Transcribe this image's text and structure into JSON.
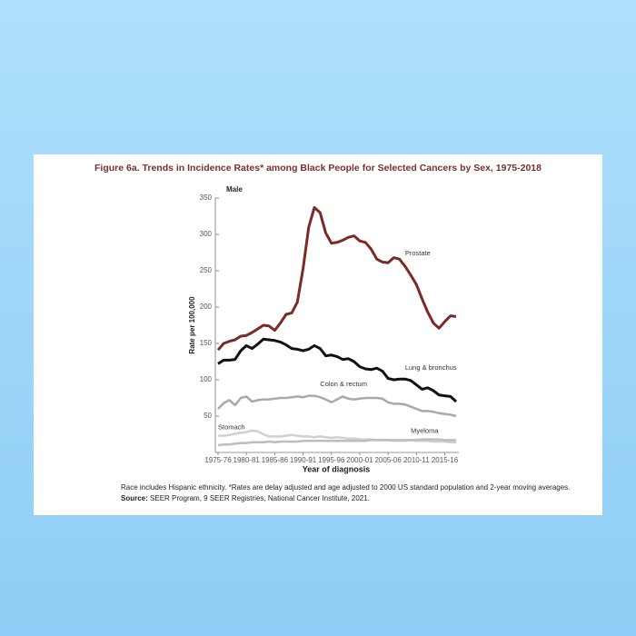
{
  "chart_data": {
    "type": "line",
    "title": "Figure 6a. Trends in Incidence Rates* among Black People for Selected Cancers by Sex, 1975-2018",
    "panel_label": "Male",
    "y_label": "Rate per 100,000",
    "x_label": "Year of diagnosis",
    "note": "Race includes Hispanic ethnicity. *Rates are delay adjusted and age adjusted to 2000 US standard population and 2-year moving averages.",
    "source_label": "Source:",
    "source": "SEER Program, 9 SEER Registries, National Cancer Institute, 2021.",
    "categories": [
      "1975-76",
      null,
      null,
      null,
      null,
      "1980-81",
      null,
      null,
      null,
      null,
      "1985-86",
      null,
      null,
      null,
      null,
      "1990-91",
      null,
      null,
      null,
      null,
      "1995-96",
      null,
      null,
      null,
      null,
      "2000-01",
      null,
      null,
      null,
      null,
      "2005-06",
      null,
      null,
      null,
      null,
      "2010-11",
      null,
      null,
      null,
      null,
      "2015-16",
      null,
      null
    ],
    "ylim": [
      0,
      350
    ],
    "yticks": [
      50,
      100,
      150,
      200,
      250,
      300,
      350
    ],
    "grid": false,
    "series": [
      {
        "name": "Prostate",
        "color": "#7b2a26",
        "values": [
          141,
          150,
          153,
          155,
          160,
          161,
          165,
          170,
          175,
          174,
          168,
          178,
          190,
          192,
          207,
          253,
          310,
          337,
          330,
          302,
          288,
          289,
          292,
          296,
          298,
          291,
          289,
          280,
          266,
          262,
          261,
          268,
          266,
          256,
          244,
          231,
          211,
          193,
          178,
          171,
          180,
          188,
          187
        ]
      },
      {
        "name": "Lung & bronchus",
        "color": "#111111",
        "values": [
          122,
          127,
          127,
          128,
          140,
          147,
          143,
          149,
          156,
          155,
          154,
          152,
          148,
          143,
          142,
          140,
          142,
          147,
          143,
          133,
          134,
          132,
          128,
          129,
          125,
          118,
          115,
          114,
          116,
          112,
          102,
          100,
          101,
          101,
          99,
          93,
          87,
          89,
          85,
          79,
          78,
          77,
          70
        ]
      },
      {
        "name": "Colon & rectum",
        "color": "#a9a9a9",
        "values": [
          60,
          68,
          72,
          65,
          75,
          77,
          70,
          72,
          73,
          73,
          74,
          75,
          75,
          76,
          77,
          76,
          78,
          78,
          76,
          73,
          69,
          73,
          77,
          74,
          73,
          74,
          75,
          75,
          75,
          74,
          69,
          67,
          67,
          66,
          63,
          60,
          57,
          57,
          56,
          54,
          53,
          52,
          50
        ]
      },
      {
        "name": "Stomach",
        "color": "#cfcfcf",
        "values": [
          23,
          23,
          24,
          26,
          27,
          28,
          30,
          29,
          25,
          22,
          22,
          22,
          23,
          24,
          23,
          22,
          22,
          21,
          22,
          21,
          20,
          21,
          20,
          19,
          19,
          18,
          18,
          18,
          17,
          17,
          17,
          16,
          16,
          16,
          17,
          16,
          16,
          16,
          15,
          15,
          15,
          14,
          14
        ]
      },
      {
        "name": "Myeloma",
        "color": "#bdbdbd",
        "values": [
          10,
          11,
          11,
          12,
          13,
          13,
          14,
          14,
          14,
          15,
          14,
          15,
          15,
          15,
          15,
          16,
          16,
          16,
          16,
          16,
          16,
          16,
          16,
          16,
          16,
          16,
          16,
          17,
          17,
          17,
          17,
          17,
          17,
          17,
          17,
          17,
          18,
          18,
          18,
          18,
          17,
          17,
          17
        ]
      }
    ]
  }
}
